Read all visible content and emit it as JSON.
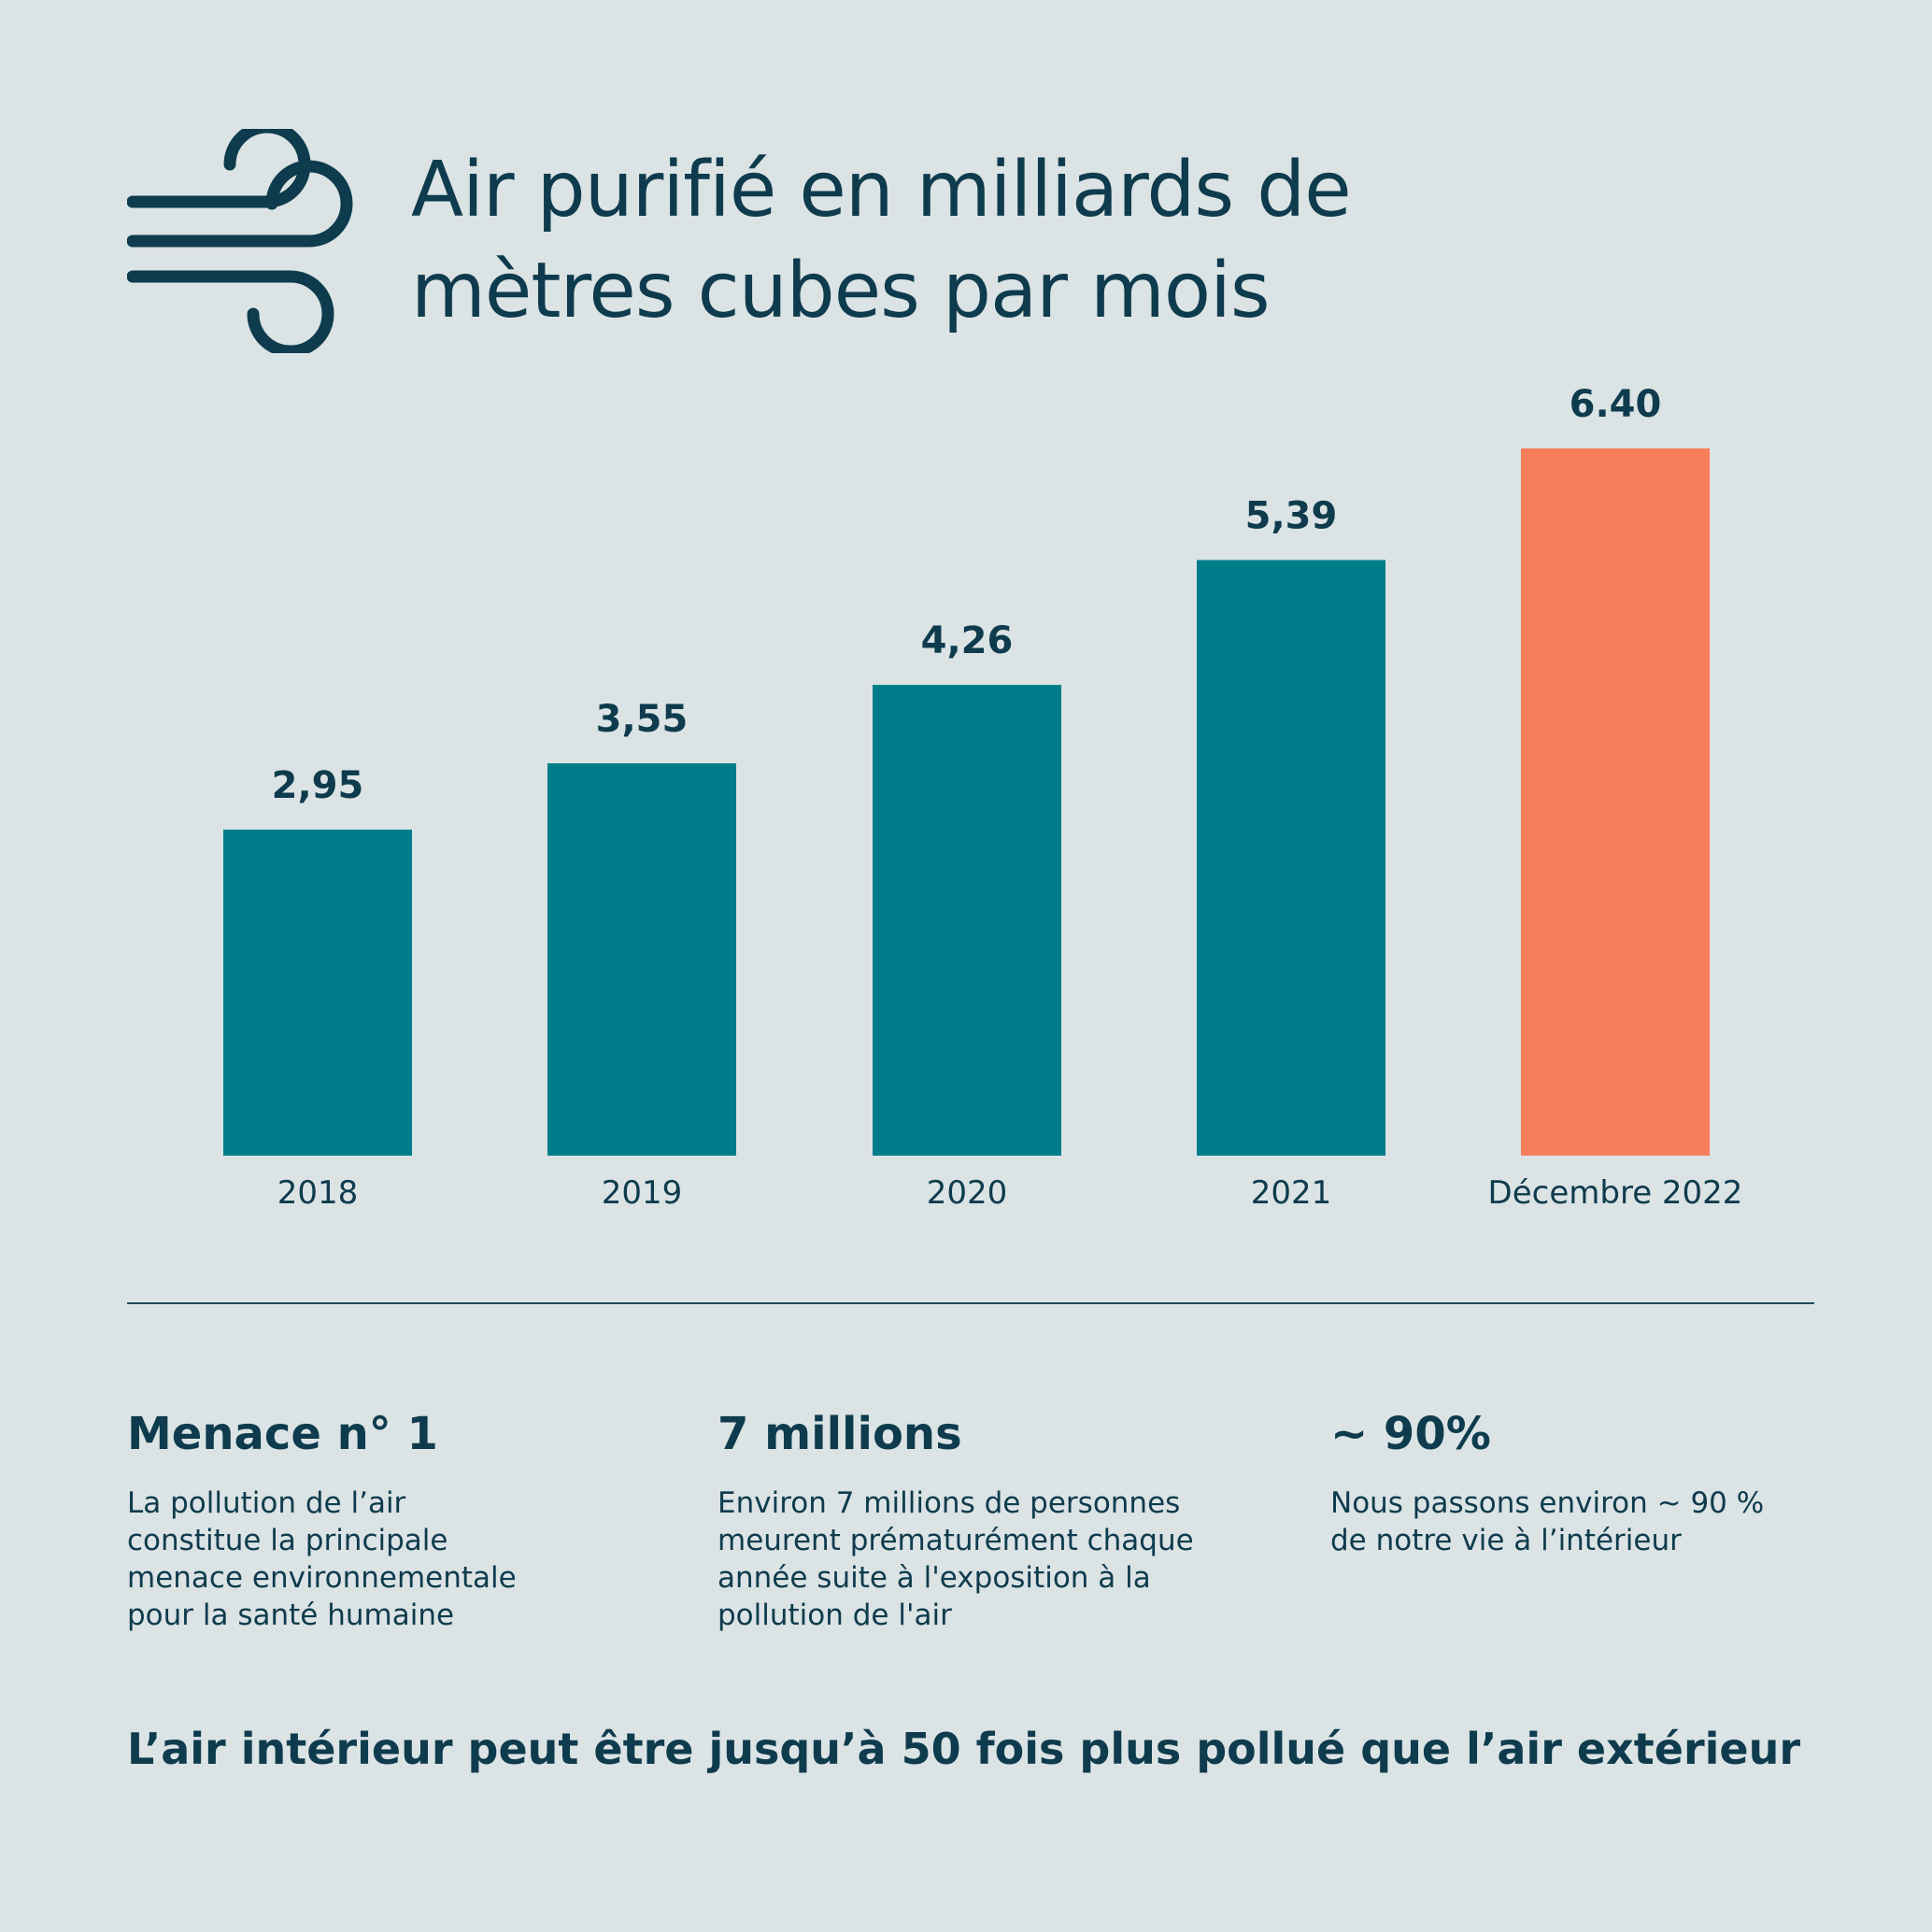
{
  "header": {
    "icon": "wind-icon",
    "title_line1": "Air purifié en milliards de",
    "title_line2": "mètres cubes par mois"
  },
  "colors": {
    "background": "#dbe3e4",
    "text": "#0e3b4d",
    "bar_default": "#007d8a",
    "bar_highlight": "#f77e5b"
  },
  "chart_data": {
    "type": "bar",
    "title": "Air purifié en milliards de mètres cubes par mois",
    "categories": [
      "2018",
      "2019",
      "2020",
      "2021",
      "Décembre 2022"
    ],
    "values": [
      2.95,
      3.55,
      4.26,
      5.39,
      6.4
    ],
    "value_labels": [
      "2,95",
      "3,55",
      "4,26",
      "5,39",
      "6.40"
    ],
    "highlight_index": 4,
    "ylim": [
      0,
      6.4
    ],
    "grid": false,
    "legend": "none",
    "xlabel": "",
    "ylabel": ""
  },
  "stats": [
    {
      "headline": "Menace n° 1",
      "body": "La pollution de l’air\nconstitue la principale\nmenace environnementale\npour la santé humaine"
    },
    {
      "headline": "7 millions",
      "body": "Environ 7 millions de personnes\nmeurent prématurément chaque\nannée suite à l'exposition à la\npollution de l'air"
    },
    {
      "headline": "~ 90%",
      "body": "Nous passons environ ~ 90 %\nde notre vie à l’intérieur"
    }
  ],
  "footer": {
    "text": "L’air intérieur peut être jusqu’à 50 fois plus pollué que l’air extérieur"
  }
}
